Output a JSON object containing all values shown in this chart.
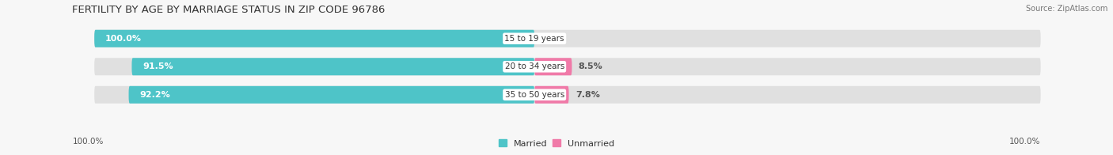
{
  "title": "FERTILITY BY AGE BY MARRIAGE STATUS IN ZIP CODE 96786",
  "source": "Source: ZipAtlas.com",
  "categories": [
    "15 to 19 years",
    "20 to 34 years",
    "35 to 50 years"
  ],
  "married_pct": [
    100.0,
    91.5,
    92.2
  ],
  "unmarried_pct": [
    0.0,
    8.5,
    7.8
  ],
  "married_color": "#4ec4c8",
  "unmarried_color": "#f07aa8",
  "bar_bg_color": "#e0e0e0",
  "bar_height": 0.62,
  "title_fontsize": 9.5,
  "label_fontsize": 8.0,
  "cat_fontsize": 7.5,
  "tick_fontsize": 7.5,
  "source_fontsize": 7.0,
  "background_color": "#f7f7f7",
  "left_100_label": "100.0%",
  "right_100_label": "100.0%"
}
